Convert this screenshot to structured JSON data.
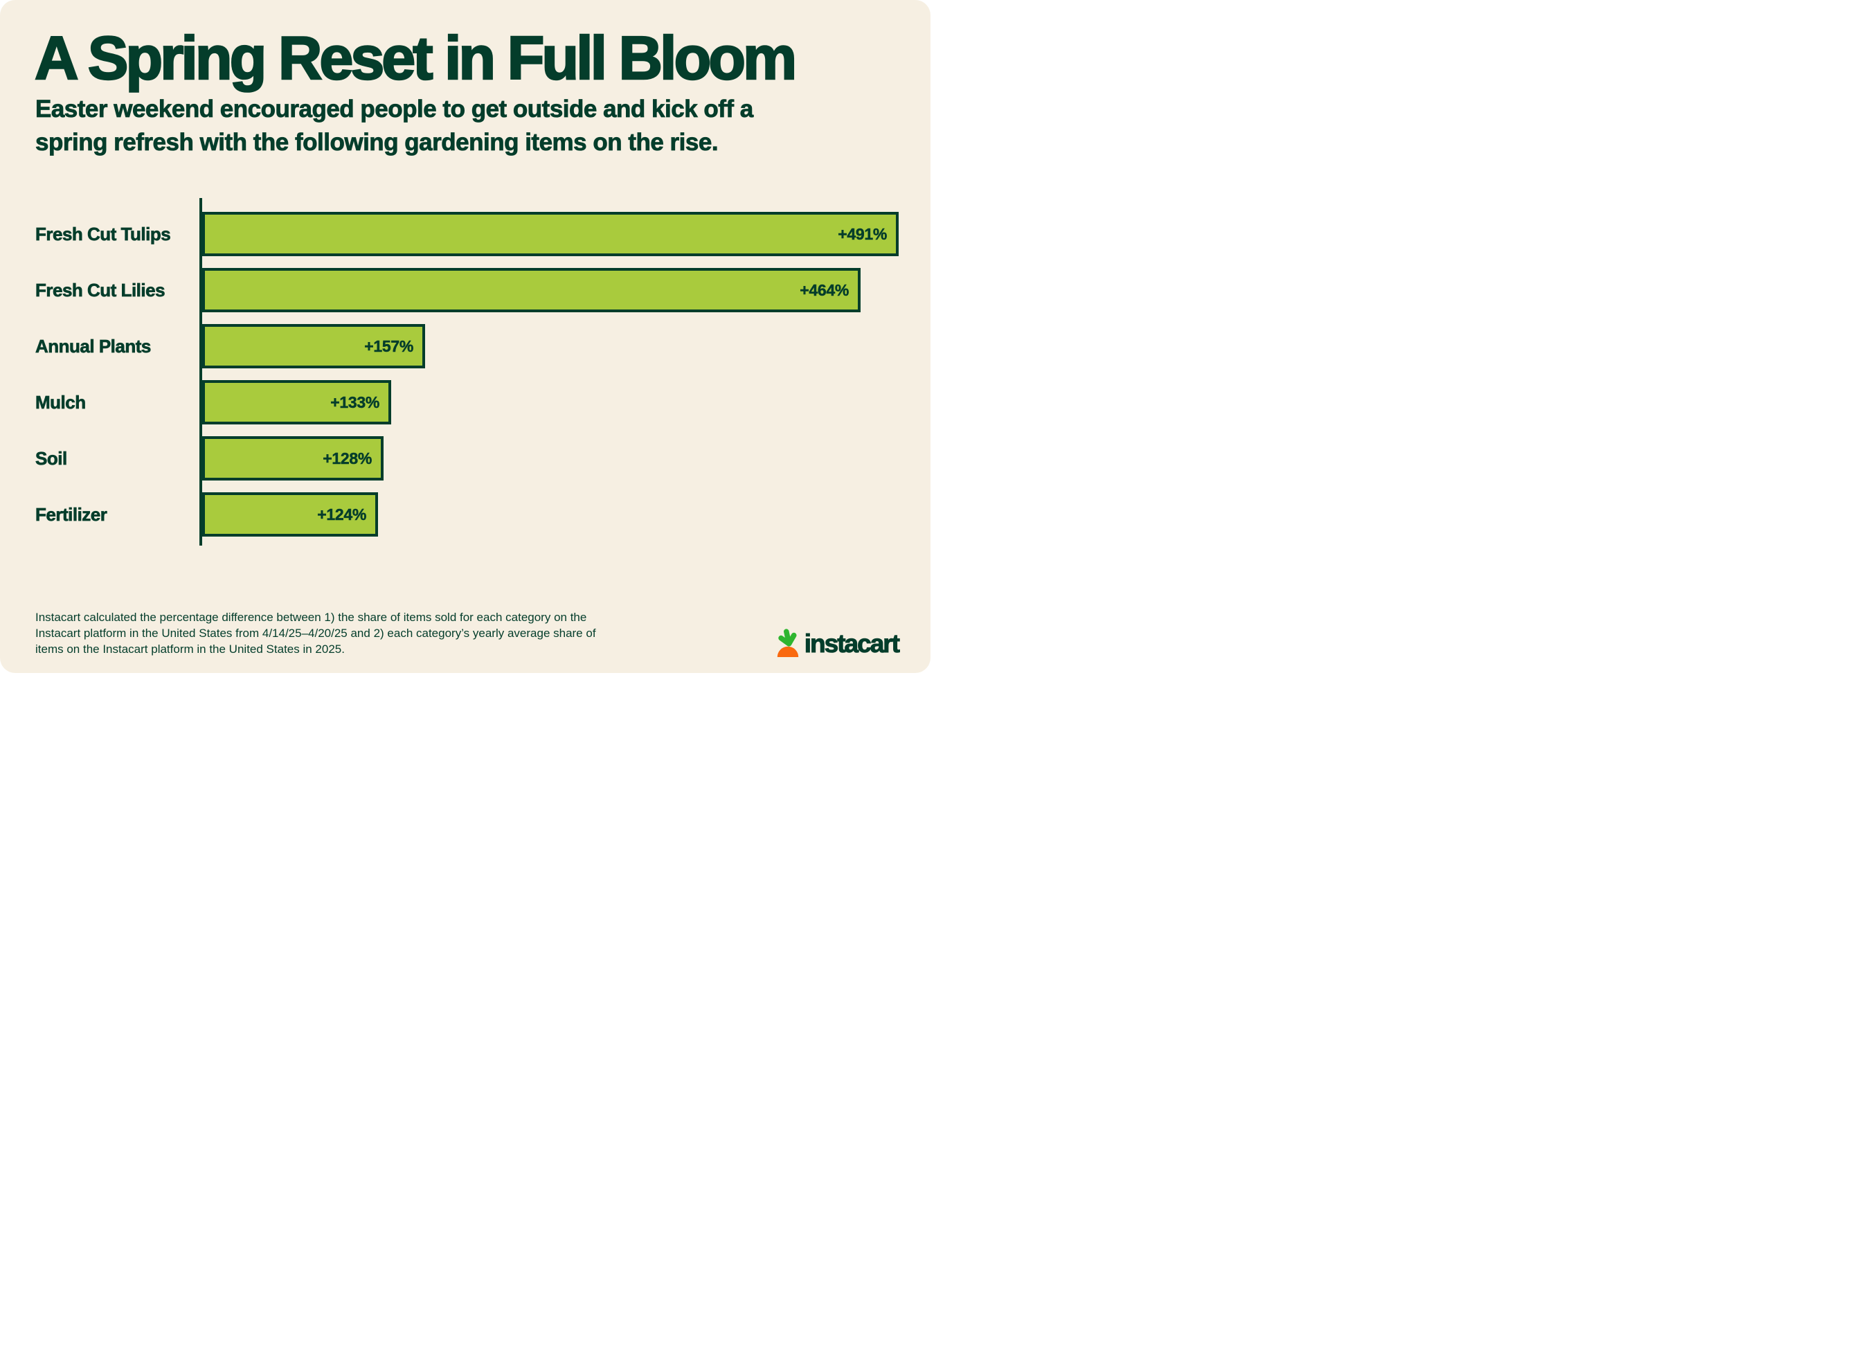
{
  "header": {
    "title": "A Spring Reset in Full Bloom",
    "subtitle": "Easter weekend encouraged people to get outside and kick off a\nspring refresh with the following gardening items on the rise."
  },
  "chart_data": {
    "type": "bar",
    "orientation": "horizontal",
    "title": "",
    "xlabel": "",
    "ylabel": "",
    "grid": false,
    "legend": false,
    "value_axis_visible": false,
    "xlim": [
      0,
      491
    ],
    "categories": [
      "Fresh Cut Tulips",
      "Fresh Cut Lilies",
      "Annual Plants",
      "Mulch",
      "Soil",
      "Fertilizer"
    ],
    "values": [
      491,
      464,
      157,
      133,
      128,
      124
    ],
    "value_labels": [
      "+491%",
      "+464%",
      "+157%",
      "+133%",
      "+128%",
      "+124%"
    ],
    "value_label_position": "inside-right"
  },
  "footer": {
    "methodology": "Instacart calculated the percentage difference between 1) the share of items sold for each category on the\nInstacart platform in the United States from 4/14/25–4/20/25 and 2) each category’s yearly average share of\nitems on the Instacart platform in the United States in 2025.",
    "logo_text": "instacart"
  },
  "colors": {
    "background": "#F6EFE2",
    "text_dark_green": "#043D2B",
    "bar_fill": "#A9CB3D",
    "bar_border": "#043D2B",
    "carrot_orange": "#F9690F",
    "leaf_green": "#2FB52F",
    "page_white": "#FFFFFF"
  }
}
